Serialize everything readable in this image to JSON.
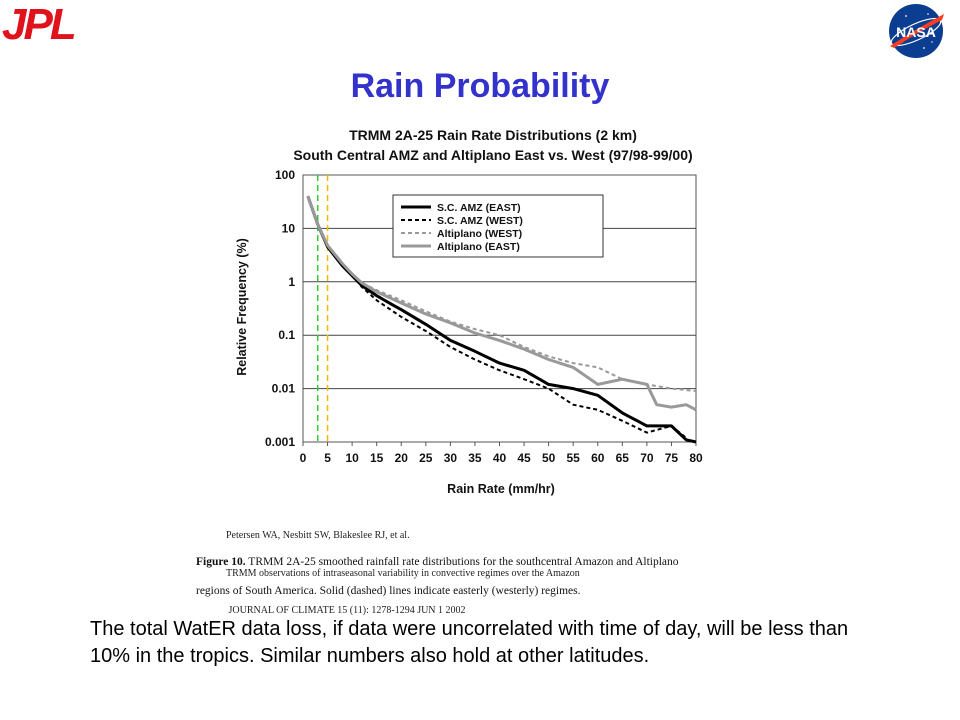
{
  "branding": {
    "left_logo_text": "JPL",
    "right_logo_text": "NASA",
    "colors": {
      "jpl_red": "#e0121b",
      "nasa_blue": "#0b3d91",
      "nasa_red": "#fc3d21",
      "title_blue": "#3333cc"
    }
  },
  "slide": {
    "title": "Rain Probability",
    "body": "The total WatER data loss, if data were uncorrelated with time of day, will be less than 10% in the tropics. Similar numbers also hold at other latitudes."
  },
  "citation": {
    "line1": "Petersen WA, Nesbitt SW, Blakeslee RJ, et al.",
    "line2": "TRMM observations of intraseasonal variability in convective regimes over the Amazon",
    "line3": " JOURNAL OF CLIMATE 15 (11): 1278-1294 JUN 1 2002"
  },
  "caption": {
    "label": "Figure 10.",
    "line1": "  TRMM 2A-25 smoothed rainfall rate distributions for the southcentral Amazon and Altiplano",
    "line2": "regions of South America.  Solid (dashed) lines indicate easterly (westerly) regimes."
  },
  "chart_data": {
    "type": "line",
    "title": "TRMM 2A-25 Rain Rate Distributions (2 km)",
    "subtitle": "South Central AMZ and Altiplano East vs. West (97/98-99/00)",
    "xlabel": "Rain Rate (mm/hr)",
    "ylabel": "Relative Frequency (%)",
    "xlim": [
      0,
      80
    ],
    "ylim": [
      0.001,
      100
    ],
    "yscale": "log",
    "xticks": [
      "0",
      "5",
      "10",
      "15",
      "20",
      "25",
      "30",
      "35",
      "40",
      "45",
      "50",
      "55",
      "60",
      "65",
      "70",
      "75",
      "80"
    ],
    "yticks": [
      "100",
      "10",
      "1",
      "0.1",
      "0.01",
      "0.001"
    ],
    "grid": "horizontal",
    "legend": "top-right",
    "reference_lines": [
      {
        "x": 3,
        "color": "#33cc33",
        "style": "dashed"
      },
      {
        "x": 5,
        "color": "#f5b800",
        "style": "dashed"
      }
    ],
    "series": [
      {
        "name": "S.C. AMZ (EAST)",
        "color": "#000000",
        "style": "solid",
        "width": 3,
        "x": [
          1,
          3,
          5,
          8,
          10,
          12,
          15,
          18,
          20,
          25,
          30,
          35,
          40,
          45,
          50,
          55,
          60,
          65,
          70,
          72,
          75,
          78,
          80
        ],
        "y": [
          40,
          12,
          4.5,
          2,
          1.3,
          0.85,
          0.55,
          0.38,
          0.3,
          0.16,
          0.08,
          0.05,
          0.03,
          0.022,
          0.012,
          0.01,
          0.0075,
          0.0035,
          0.002,
          0.002,
          0.002,
          0.0011,
          0.001
        ]
      },
      {
        "name": "S.C. AMZ (WEST)",
        "color": "#000000",
        "style": "dashed",
        "width": 2,
        "x": [
          1,
          3,
          5,
          8,
          10,
          12,
          15,
          20,
          25,
          30,
          35,
          40,
          45,
          50,
          55,
          60,
          65,
          70,
          75,
          78
        ],
        "y": [
          40,
          12,
          4.5,
          2,
          1.3,
          0.8,
          0.45,
          0.22,
          0.12,
          0.06,
          0.035,
          0.022,
          0.015,
          0.01,
          0.005,
          0.004,
          0.0025,
          0.0015,
          0.002,
          0.0012
        ]
      },
      {
        "name": "Altiplano (WEST)",
        "color": "#999999",
        "style": "dashed",
        "width": 2,
        "x": [
          1,
          3,
          5,
          8,
          10,
          12,
          15,
          20,
          25,
          30,
          35,
          40,
          45,
          50,
          55,
          60,
          65,
          70,
          75,
          80
        ],
        "y": [
          40,
          12,
          4.8,
          2.2,
          1.4,
          0.95,
          0.7,
          0.45,
          0.28,
          0.18,
          0.13,
          0.1,
          0.06,
          0.04,
          0.03,
          0.025,
          0.015,
          0.012,
          0.01,
          0.009
        ]
      },
      {
        "name": "Altiplano (EAST)",
        "color": "#999999",
        "style": "solid",
        "width": 3,
        "x": [
          1,
          3,
          5,
          8,
          10,
          12,
          15,
          20,
          25,
          30,
          35,
          40,
          45,
          50,
          55,
          60,
          65,
          70,
          72,
          75,
          78,
          80
        ],
        "y": [
          40,
          12,
          4.8,
          2.2,
          1.4,
          0.95,
          0.65,
          0.4,
          0.25,
          0.17,
          0.11,
          0.08,
          0.055,
          0.035,
          0.025,
          0.012,
          0.015,
          0.012,
          0.005,
          0.0045,
          0.005,
          0.004
        ]
      }
    ]
  }
}
